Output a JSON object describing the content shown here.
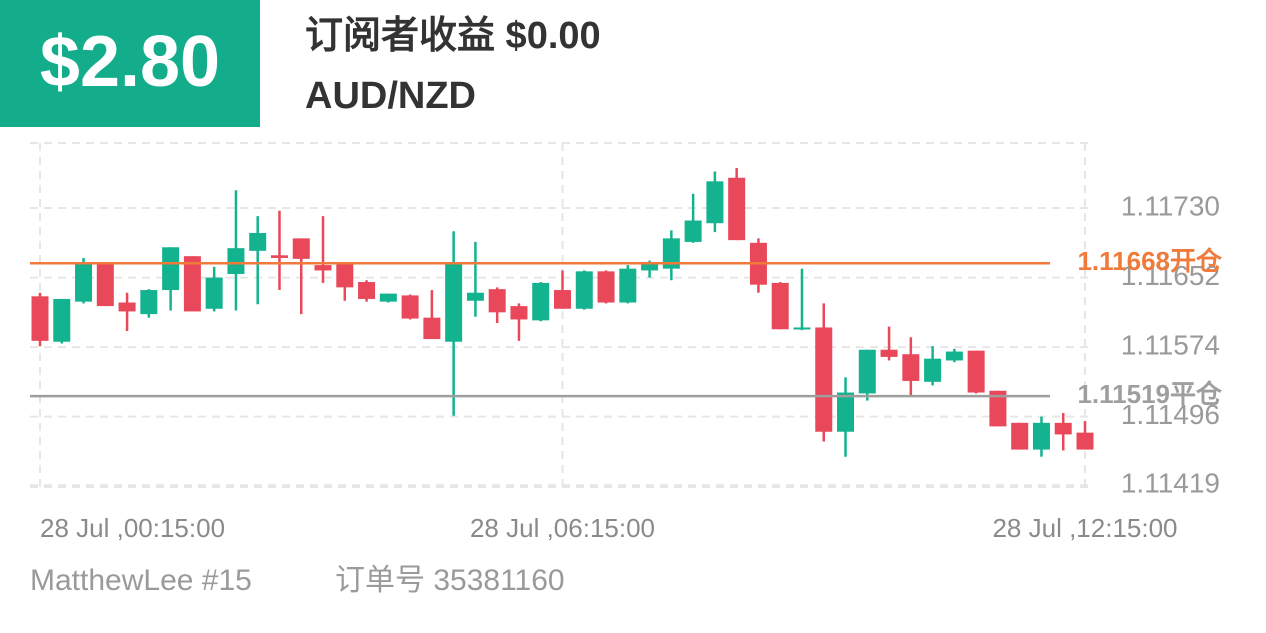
{
  "header": {
    "profit": "$2.80",
    "title": "订阅者收益 $0.00",
    "symbol": "AUD/NZD"
  },
  "footer": {
    "user": "MatthewLee #15",
    "order": "订单号 35381160"
  },
  "chart_data": {
    "type": "candlestick",
    "categories": [
      "28 Jul ,00:15:00",
      null,
      null,
      null,
      null,
      null,
      null,
      null,
      null,
      null,
      null,
      null,
      null,
      null,
      null,
      null,
      null,
      null,
      null,
      null,
      null,
      null,
      null,
      null,
      "28 Jul ,06:15:00",
      null,
      null,
      null,
      null,
      null,
      null,
      null,
      null,
      null,
      null,
      null,
      null,
      null,
      null,
      null,
      null,
      null,
      null,
      null,
      null,
      null,
      null,
      null,
      "28 Jul ,12:15:00"
    ],
    "open": [
      1.11631,
      1.1158,
      1.11625,
      1.11668,
      1.11624,
      1.11611,
      1.11638,
      1.11676,
      1.11617,
      1.11656,
      1.11682,
      1.11677,
      1.11696,
      1.11666,
      1.11667,
      1.11647,
      1.11625,
      1.11632,
      1.11607,
      1.1158,
      1.11626,
      1.11639,
      1.1162,
      1.11604,
      1.11638,
      1.11617,
      1.11659,
      1.11624,
      1.1166,
      1.11662,
      1.11692,
      1.11713,
      1.11764,
      1.11691,
      1.11646,
      1.11595,
      1.11596,
      1.11479,
      1.11522,
      1.11571,
      1.11566,
      1.11535,
      1.11559,
      1.1157,
      1.11525,
      1.11489,
      1.11459,
      1.11489,
      1.11478
    ],
    "high": [
      1.11635,
      1.11628,
      1.11674,
      1.11669,
      1.11635,
      1.11639,
      1.11686,
      1.11676,
      1.11664,
      1.1175,
      1.11721,
      1.11727,
      1.11696,
      1.11721,
      1.11669,
      1.11649,
      1.11634,
      1.11633,
      1.11638,
      1.11704,
      1.11692,
      1.11641,
      1.11623,
      1.11647,
      1.1166,
      1.1166,
      1.1166,
      1.11666,
      1.11671,
      1.11705,
      1.11746,
      1.11771,
      1.11775,
      1.11696,
      1.11647,
      1.11662,
      1.11623,
      1.1154,
      1.11571,
      1.11597,
      1.11585,
      1.11575,
      1.11572,
      1.1157,
      1.11525,
      1.11489,
      1.11496,
      1.115,
      1.11491
    ],
    "low": [
      1.11575,
      1.11578,
      1.11623,
      1.1162,
      1.11592,
      1.11607,
      1.11615,
      1.11614,
      1.11614,
      1.11615,
      1.11622,
      1.11638,
      1.11611,
      1.11646,
      1.11626,
      1.11625,
      1.11624,
      1.11605,
      1.11583,
      1.11497,
      1.11608,
      1.11601,
      1.11581,
      1.11603,
      1.11617,
      1.11616,
      1.11623,
      1.11623,
      1.11652,
      1.11649,
      1.11691,
      1.11703,
      1.11694,
      1.11635,
      1.11594,
      1.11593,
      1.11468,
      1.11451,
      1.11514,
      1.11559,
      1.11518,
      1.11531,
      1.11557,
      1.11522,
      1.11485,
      1.11459,
      1.11451,
      1.11458,
      1.11459
    ],
    "close": [
      1.11581,
      1.11628,
      1.11667,
      1.1162,
      1.11614,
      1.11638,
      1.11686,
      1.11614,
      1.11652,
      1.11685,
      1.11702,
      1.11674,
      1.11673,
      1.1166,
      1.11641,
      1.11628,
      1.11634,
      1.11606,
      1.11583,
      1.11668,
      1.11635,
      1.11613,
      1.11605,
      1.11646,
      1.11617,
      1.11659,
      1.11624,
      1.11662,
      1.11667,
      1.11696,
      1.11716,
      1.1176,
      1.11694,
      1.11644,
      1.11594,
      1.11596,
      1.11479,
      1.11523,
      1.11571,
      1.11563,
      1.11536,
      1.11561,
      1.11569,
      1.11523,
      1.11485,
      1.11459,
      1.11489,
      1.11476,
      1.11459
    ],
    "up_color": "#14b38f",
    "down_color": "#e8485a",
    "ylim": [
      1.11417,
      1.11803
    ],
    "yticks": [
      {
        "value": 1.1173,
        "label": "1.11730"
      },
      1.11652,
      1.11574,
      1.11496,
      1.11419
    ],
    "grid": true,
    "lines": [
      {
        "value": 1.11668,
        "label": "1.11668开仓",
        "color": "#f07a3a"
      },
      {
        "value": 1.11519,
        "label": "1.11519平仓",
        "color": "#9e9e9e"
      }
    ]
  }
}
